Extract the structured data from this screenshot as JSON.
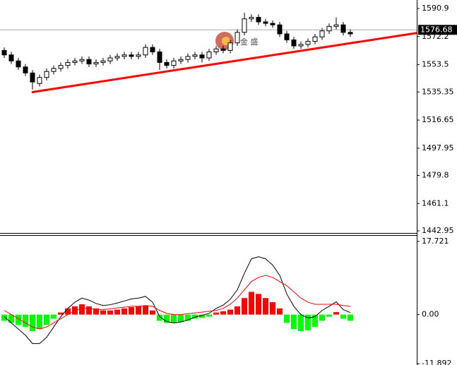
{
  "chart_data": [
    {
      "type": "candlestick",
      "open": [
        1563,
        1560,
        1556,
        1552,
        1548,
        1541,
        1545,
        1549,
        1551,
        1553,
        1555,
        1556,
        1557,
        1554,
        1555,
        1556,
        1558,
        1559,
        1560,
        1559,
        1560,
        1565,
        1562,
        1555,
        1553,
        1556,
        1557,
        1559,
        1560,
        1558,
        1562,
        1564,
        1563,
        1568,
        1575,
        1584,
        1585,
        1582,
        1581,
        1580,
        1574,
        1570,
        1566,
        1567,
        1569,
        1572,
        1576,
        1579,
        1580,
        1575
      ],
      "high": [
        1565,
        1562,
        1558,
        1554,
        1550,
        1547,
        1551,
        1553,
        1555,
        1557,
        1558,
        1559,
        1559,
        1557,
        1558,
        1560,
        1561,
        1562,
        1562,
        1562,
        1567,
        1567,
        1564,
        1557,
        1558,
        1559,
        1561,
        1562,
        1562,
        1564,
        1566,
        1566,
        1570,
        1577,
        1588,
        1587,
        1587,
        1584,
        1583,
        1582,
        1576,
        1572,
        1569,
        1571,
        1574,
        1578,
        1581,
        1585,
        1582,
        1577
      ],
      "low": [
        1558,
        1554,
        1550,
        1546,
        1537,
        1539,
        1543,
        1547,
        1549,
        1551,
        1553,
        1554,
        1552,
        1552,
        1553,
        1554,
        1556,
        1557,
        1557,
        1557,
        1558,
        1560,
        1550,
        1551,
        1551,
        1554,
        1555,
        1557,
        1555,
        1556,
        1560,
        1561,
        1561,
        1566,
        1573,
        1582,
        1580,
        1579,
        1578,
        1572,
        1568,
        1564,
        1564,
        1565,
        1567,
        1570,
        1574,
        1577,
        1573,
        1572
      ],
      "close": [
        1560,
        1556,
        1552,
        1548,
        1542,
        1545,
        1549,
        1551,
        1553,
        1555,
        1556,
        1557,
        1554,
        1555,
        1556,
        1558,
        1559,
        1560,
        1559,
        1560,
        1565,
        1562,
        1555,
        1553,
        1556,
        1557,
        1559,
        1560,
        1558,
        1562,
        1564,
        1563,
        1568,
        1575,
        1584,
        1585,
        1582,
        1581,
        1580,
        1574,
        1570,
        1566,
        1567,
        1569,
        1572,
        1576,
        1579,
        1580,
        1575,
        1574
      ],
      "ylim": [
        1441.54,
        1596.54
      ],
      "yticks": [
        1590.9,
        1572.2,
        1553.5,
        1535.35,
        1516.65,
        1497.95,
        1479.8,
        1461.1,
        1442.95
      ],
      "current_price": 1576.68,
      "trendline": {
        "color": "#ff0000",
        "start": [
          3.9,
          1535.2
        ],
        "end": [
          58.4,
          1574.6
        ]
      },
      "watermark": "金 盛"
    },
    {
      "type": "macd",
      "histogram": [
        -1.5,
        -2,
        -2.5,
        -3,
        -4,
        -3.5,
        -2.5,
        -1,
        0.5,
        1.5,
        2,
        2.5,
        2,
        1.5,
        1,
        1,
        1.2,
        1.5,
        1.8,
        2,
        2.2,
        1,
        -1.5,
        -2,
        -2,
        -1.8,
        -1.5,
        -1,
        -0.8,
        -0.5,
        0.5,
        0.8,
        1.2,
        2,
        4,
        5.5,
        5,
        4,
        3,
        1.5,
        -2,
        -3.5,
        -4,
        -3.8,
        -3,
        -1.5,
        -0.5,
        0.6,
        -1,
        -1.5
      ],
      "series": [
        {
          "color": "#000000",
          "values": [
            -0.5,
            -2,
            -3.5,
            -5,
            -7,
            -7,
            -5.5,
            -3,
            -0.5,
            1.5,
            3,
            4,
            3.5,
            2.7,
            2.2,
            2.4,
            2.8,
            3.3,
            3.8,
            4,
            4.4,
            3,
            -0.5,
            -1.7,
            -2,
            -1.8,
            -1.3,
            -0.6,
            -0.2,
            0.3,
            1.5,
            2.3,
            3.7,
            6,
            10,
            13.5,
            14,
            13.5,
            12,
            9.5,
            5,
            2,
            0,
            -0.8,
            -0.5,
            1,
            2,
            3.1,
            1.2,
            0.5
          ]
        },
        {
          "color": "#ff0000",
          "values": [
            1,
            0,
            -1,
            -2,
            -3,
            -3.5,
            -3,
            -2,
            -1,
            0,
            1,
            1.5,
            1.5,
            1.2,
            1.2,
            1.4,
            1.6,
            1.8,
            2,
            2,
            2.2,
            2,
            1,
            0.3,
            0,
            0,
            0.2,
            0.4,
            0.6,
            0.8,
            1,
            1.5,
            2.5,
            4,
            6,
            8,
            9,
            9.5,
            9,
            8,
            7,
            5.5,
            4,
            3,
            2.5,
            2.5,
            2.5,
            2.5,
            2.2,
            2
          ]
        }
      ],
      "ylim": [
        -12.2,
        18.9
      ],
      "yticks": [
        17.721,
        {
          "value": 0,
          "label": "0.00"
        },
        -11.892
      ]
    }
  ]
}
